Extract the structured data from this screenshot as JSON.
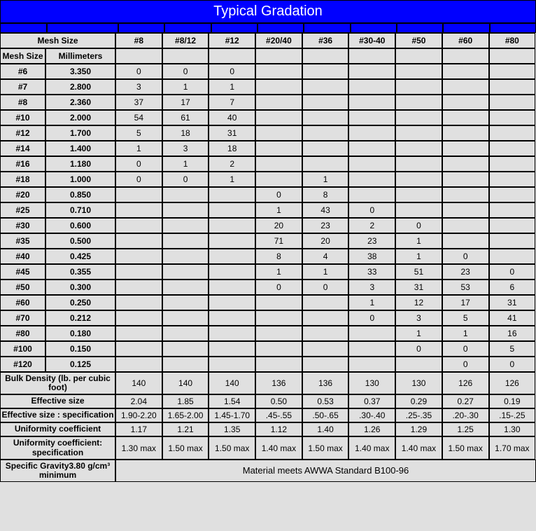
{
  "title": "Typical Gradation",
  "header": {
    "mesh_size_label": "Mesh Size",
    "col1": "Mesh Size",
    "col2": "Millimeters",
    "products": [
      "#8",
      "#8/12",
      "#12",
      "#20/40",
      "#36",
      "#30-40",
      "#50",
      "#60",
      "#80"
    ]
  },
  "rows": [
    {
      "mesh": "#6",
      "mm": "3.350",
      "v": [
        "0",
        "0",
        "0",
        "",
        "",
        "",
        "",
        "",
        ""
      ]
    },
    {
      "mesh": "#7",
      "mm": "2.800",
      "v": [
        "3",
        "1",
        "1",
        "",
        "",
        "",
        "",
        "",
        ""
      ]
    },
    {
      "mesh": "#8",
      "mm": "2.360",
      "v": [
        "37",
        "17",
        "7",
        "",
        "",
        "",
        "",
        "",
        ""
      ]
    },
    {
      "mesh": "#10",
      "mm": "2.000",
      "v": [
        "54",
        "61",
        "40",
        "",
        "",
        "",
        "",
        "",
        ""
      ]
    },
    {
      "mesh": "#12",
      "mm": "1.700",
      "v": [
        "5",
        "18",
        "31",
        "",
        "",
        "",
        "",
        "",
        ""
      ]
    },
    {
      "mesh": "#14",
      "mm": "1.400",
      "v": [
        "1",
        "3",
        "18",
        "",
        "",
        "",
        "",
        "",
        ""
      ]
    },
    {
      "mesh": "#16",
      "mm": "1.180",
      "v": [
        "0",
        "1",
        "2",
        "",
        "",
        "",
        "",
        "",
        ""
      ]
    },
    {
      "mesh": "#18",
      "mm": "1.000",
      "v": [
        "0",
        "0",
        "1",
        "",
        "1",
        "",
        "",
        "",
        ""
      ]
    },
    {
      "mesh": "#20",
      "mm": "0.850",
      "v": [
        "",
        "",
        "",
        "0",
        "8",
        "",
        "",
        "",
        ""
      ]
    },
    {
      "mesh": "#25",
      "mm": "0.710",
      "v": [
        "",
        "",
        "",
        "1",
        "43",
        "0",
        "",
        "",
        ""
      ]
    },
    {
      "mesh": "#30",
      "mm": "0.600",
      "v": [
        "",
        "",
        "",
        "20",
        "23",
        "2",
        "0",
        "",
        ""
      ]
    },
    {
      "mesh": "#35",
      "mm": "0.500",
      "v": [
        "",
        "",
        "",
        "71",
        "20",
        "23",
        "1",
        "",
        ""
      ]
    },
    {
      "mesh": "#40",
      "mm": "0.425",
      "v": [
        "",
        "",
        "",
        "8",
        "4",
        "38",
        "1",
        "0",
        ""
      ]
    },
    {
      "mesh": "#45",
      "mm": "0.355",
      "v": [
        "",
        "",
        "",
        "1",
        "1",
        "33",
        "51",
        "23",
        "0"
      ]
    },
    {
      "mesh": "#50",
      "mm": "0.300",
      "v": [
        "",
        "",
        "",
        "0",
        "0",
        "3",
        "31",
        "53",
        "6"
      ]
    },
    {
      "mesh": "#60",
      "mm": "0.250",
      "v": [
        "",
        "",
        "",
        "",
        "",
        "1",
        "12",
        "17",
        "31"
      ]
    },
    {
      "mesh": "#70",
      "mm": "0.212",
      "v": [
        "",
        "",
        "",
        "",
        "",
        "0",
        "3",
        "5",
        "41"
      ]
    },
    {
      "mesh": "#80",
      "mm": "0.180",
      "v": [
        "",
        "",
        "",
        "",
        "",
        "",
        "1",
        "1",
        "16"
      ]
    },
    {
      "mesh": "#100",
      "mm": "0.150",
      "v": [
        "",
        "",
        "",
        "",
        "",
        "",
        "0",
        "0",
        "5"
      ]
    },
    {
      "mesh": "#120",
      "mm": "0.125",
      "v": [
        "",
        "",
        "",
        "",
        "",
        "",
        "",
        "0",
        "0"
      ]
    }
  ],
  "summary": [
    {
      "label": "Bulk Density (lb. per cubic foot)",
      "v": [
        "140",
        "140",
        "140",
        "136",
        "136",
        "130",
        "130",
        "126",
        "126"
      ]
    },
    {
      "label": "Effective size",
      "v": [
        "2.04",
        "1.85",
        "1.54",
        "0.50",
        "0.53",
        "0.37",
        "0.29",
        "0.27",
        "0.19"
      ]
    },
    {
      "label": "Effective size : specification",
      "v": [
        "1.90-2.20",
        "1.65-2.00",
        "1.45-1.70",
        ".45-.55",
        ".50-.65",
        ".30-.40",
        ".25-.35",
        ".20-.30",
        ".15-.25"
      ]
    },
    {
      "label": "Uniformity coefficient",
      "v": [
        "1.17",
        "1.21",
        "1.35",
        "1.12",
        "1.40",
        "1.26",
        "1.29",
        "1.25",
        "1.30"
      ]
    },
    {
      "label": "Uniformity coefficient: specification",
      "v": [
        "1.30 max",
        "1.50 max",
        "1.50 max",
        "1.40 max",
        "1.50 max",
        "1.40 max",
        "1.40 max",
        "1.50 max",
        "1.70 max"
      ]
    }
  ],
  "footer": {
    "sg_label": "Specific Gravity3.80 g/cm³ minimum",
    "awwa": "Material meets AWWA Standard B100-96"
  },
  "style": {
    "title_bg": "#0000ff",
    "title_fg": "#ffffff",
    "cell_bg": "#e0e0e0",
    "border": "#000000"
  }
}
